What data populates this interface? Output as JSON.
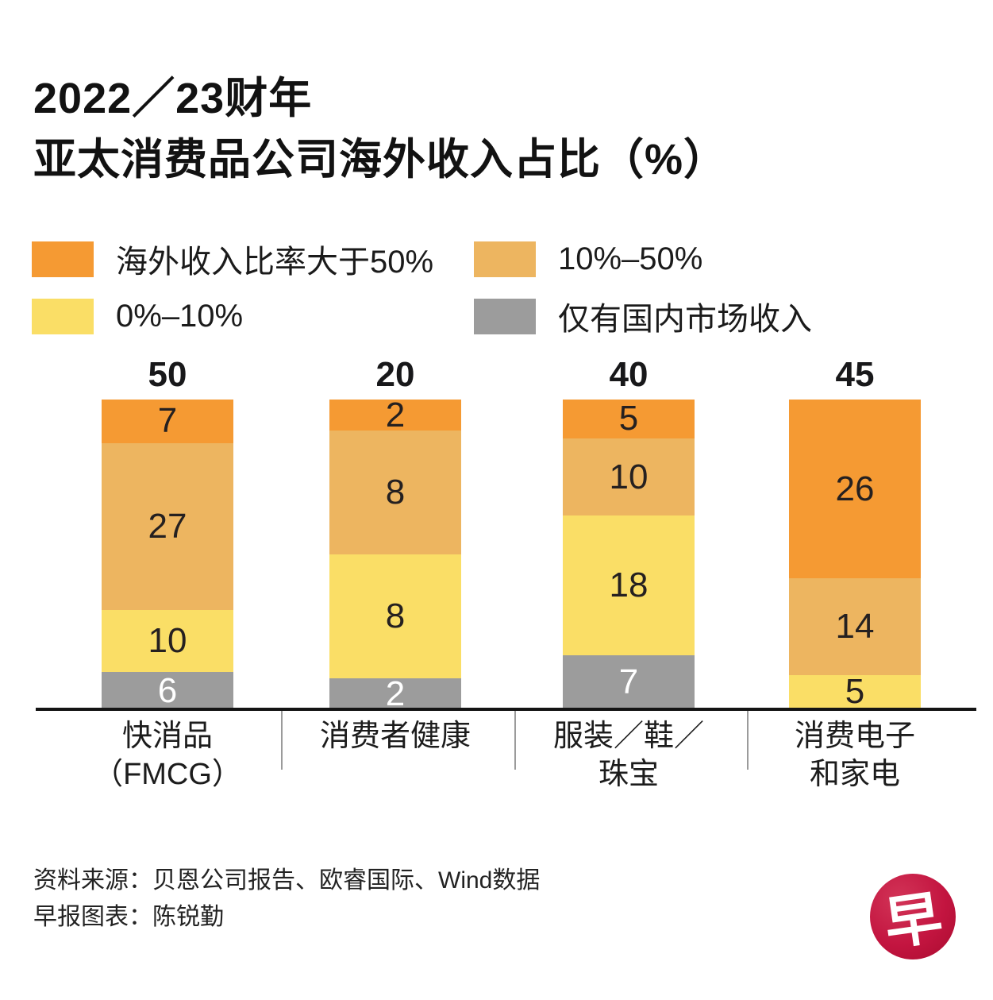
{
  "title": {
    "line1": "2022／23财年",
    "line2": "亚太消费品公司海外收入占比（%）"
  },
  "legend": [
    {
      "label": "海外收入比率大于50%",
      "color": "#F59A33"
    },
    {
      "label": "10%–50%",
      "color": "#EDB560"
    },
    {
      "label": "0%–10%",
      "color": "#FADE66"
    },
    {
      "label": "仅有国内市场收入",
      "color": "#9C9C9C"
    }
  ],
  "chart_data": {
    "type": "bar",
    "subtype": "stacked-normalized-height",
    "title": "2022／23财年亚太消费品公司海外收入占比（%）",
    "categories": [
      "快消品（FMCG）",
      "消费者健康",
      "服装／鞋／珠宝",
      "消费电子和家电"
    ],
    "category_lines": [
      [
        "快消品",
        "（FMCG）"
      ],
      [
        "消费者健康"
      ],
      [
        "服装／鞋／",
        "珠宝"
      ],
      [
        "消费电子",
        "和家电"
      ]
    ],
    "totals": [
      50,
      20,
      40,
      45
    ],
    "series": [
      {
        "name": "海外收入比率大于50%",
        "color": "#F59A33",
        "label_color": "#252020",
        "values": [
          7,
          2,
          5,
          26
        ]
      },
      {
        "name": "10%–50%",
        "color": "#EDB560",
        "label_color": "#252020",
        "values": [
          27,
          8,
          10,
          14
        ]
      },
      {
        "name": "0%–10%",
        "color": "#FADE66",
        "label_color": "#252020",
        "values": [
          10,
          8,
          18,
          5
        ]
      },
      {
        "name": "仅有国内市场收入",
        "color": "#9C9C9C",
        "label_color": "#ffffff",
        "values": [
          6,
          2,
          7,
          0
        ]
      }
    ],
    "legend_position": "top",
    "grid": false,
    "value_labels": "inside-segments",
    "total_labels": "above-bars"
  },
  "footer": {
    "source": "资料来源：贝恩公司报告、欧睿国际、Wind数据",
    "credit": "早报图表：陈锐勤"
  },
  "logo": {
    "char": "早",
    "color": "#C31540"
  }
}
